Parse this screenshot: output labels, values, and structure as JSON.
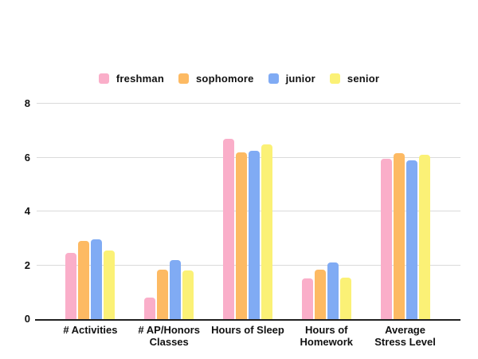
{
  "page": {
    "background_color": "#ffffff",
    "grid_color": "#dadada",
    "axis_color": "#212121",
    "text_color": "#111111"
  },
  "chart_data": {
    "type": "bar",
    "title": "",
    "xlabel": "",
    "ylabel": "",
    "ylim": [
      0,
      8
    ],
    "yticks": [
      0,
      2,
      4,
      6,
      8
    ],
    "grid": true,
    "legend_position": "top",
    "categories": [
      "# Activities",
      "# AP/Honors Classes",
      "Hours of Sleep",
      "Hours of Homework",
      "Average Stress Level"
    ],
    "series": [
      {
        "name": "freshman",
        "color": "#FAAEC9",
        "values": [
          2.45,
          0.8,
          6.7,
          1.5,
          5.95
        ]
      },
      {
        "name": "sophomore",
        "color": "#FDBA63",
        "values": [
          2.9,
          1.85,
          6.2,
          1.85,
          6.15
        ]
      },
      {
        "name": "junior",
        "color": "#80ABF4",
        "values": [
          2.95,
          2.2,
          6.25,
          2.1,
          5.9
        ]
      },
      {
        "name": "senior",
        "color": "#FBF176",
        "values": [
          2.55,
          1.8,
          6.5,
          1.55,
          6.1
        ]
      }
    ]
  }
}
